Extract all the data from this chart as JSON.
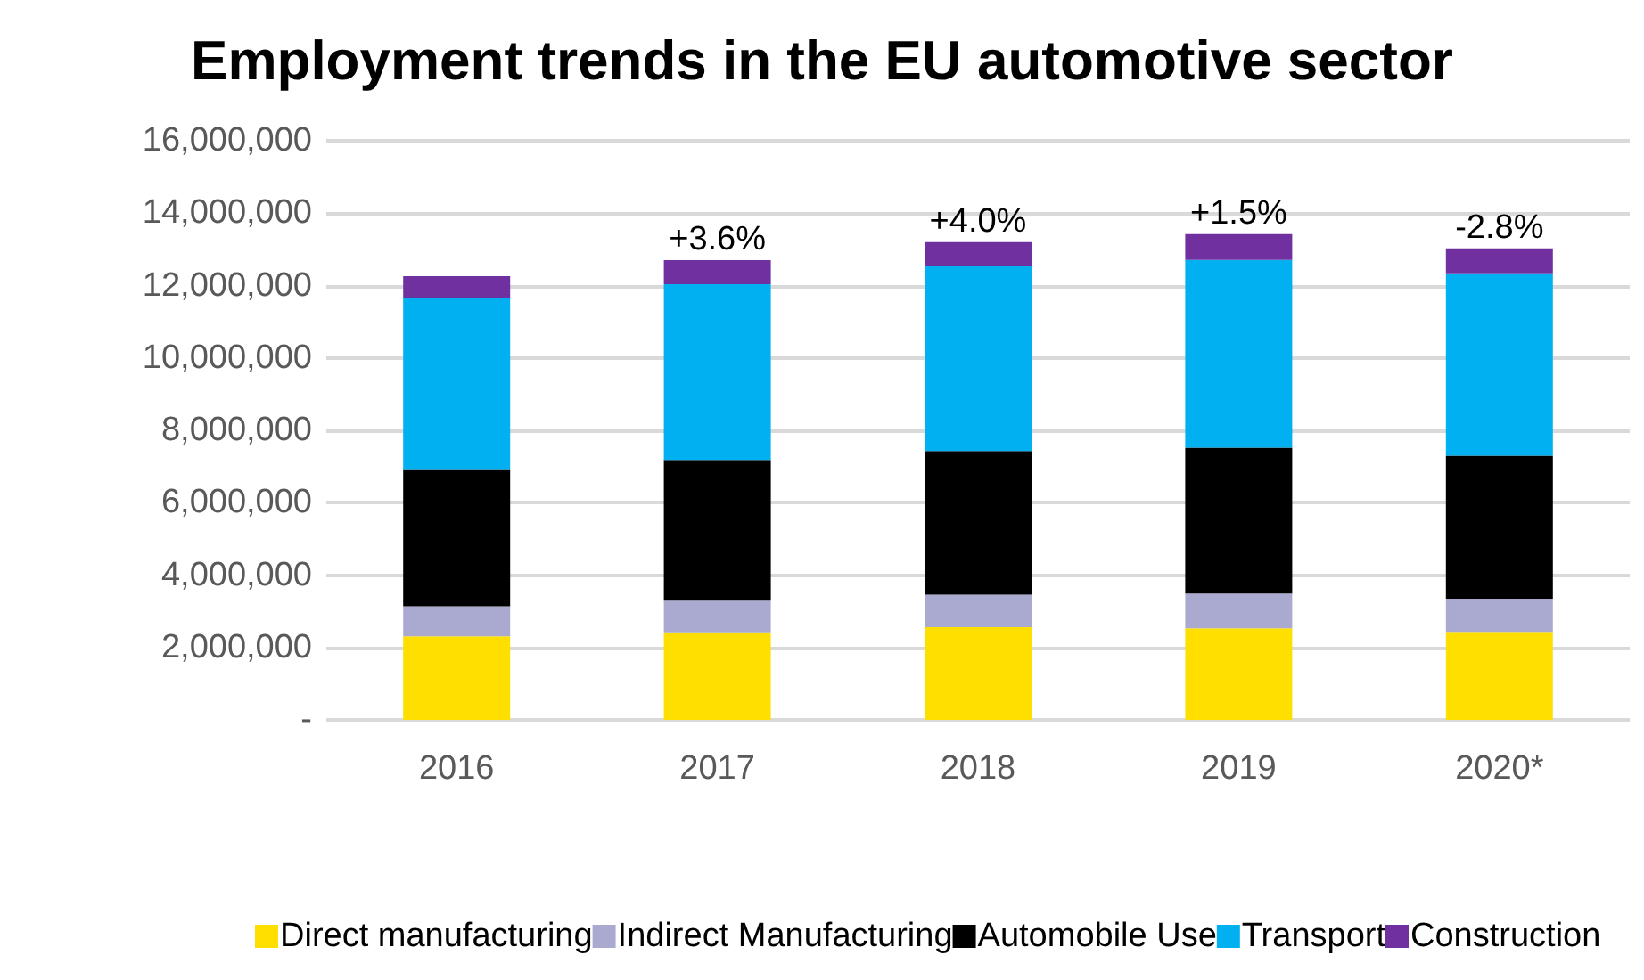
{
  "chart_data": {
    "type": "bar",
    "title": "Employment trends in the EU automotive sector",
    "stacked": true,
    "categories": [
      "2016",
      "2017",
      "2018",
      "2019",
      "2020*"
    ],
    "series": [
      {
        "name": "Direct manufacturing",
        "color": "#ffdf00",
        "values": [
          2310000,
          2420000,
          2560000,
          2530000,
          2430000
        ]
      },
      {
        "name": "Indirect Manufacturing",
        "color": "#aaaad0",
        "values": [
          830000,
          870000,
          900000,
          960000,
          920000
        ]
      },
      {
        "name": "Automobile Use",
        "color": "#000000",
        "values": [
          3790000,
          3890000,
          3970000,
          4030000,
          3950000
        ]
      },
      {
        "name": "Transport",
        "color": "#00b0f0",
        "values": [
          4740000,
          4860000,
          5100000,
          5190000,
          5040000
        ]
      },
      {
        "name": "Construction",
        "color": "#7030a0",
        "values": [
          590000,
          660000,
          670000,
          710000,
          690000
        ]
      }
    ],
    "ylim": [
      0,
      16000000
    ],
    "yticks": [
      {
        "value": 0,
        "label": "-"
      },
      {
        "value": 2000000,
        "label": "2,000,000"
      },
      {
        "value": 4000000,
        "label": "4,000,000"
      },
      {
        "value": 6000000,
        "label": "6,000,000"
      },
      {
        "value": 8000000,
        "label": "8,000,000"
      },
      {
        "value": 10000000,
        "label": "10,000,000"
      },
      {
        "value": 12000000,
        "label": "12,000,000"
      },
      {
        "value": 14000000,
        "label": "14,000,000"
      },
      {
        "value": 16000000,
        "label": "16,000,000"
      }
    ],
    "annotations": [
      {
        "text": "+3.6%",
        "x": "2017",
        "y": 12700000
      },
      {
        "text": "+4.0%",
        "x": "2018",
        "y": 13200000
      },
      {
        "text": "+1.5%",
        "x": "2019",
        "y": 13420000
      },
      {
        "text": "-2.8%",
        "x": "2020*",
        "y": 13030000
      }
    ],
    "grid": "y",
    "legend": "bottom"
  }
}
